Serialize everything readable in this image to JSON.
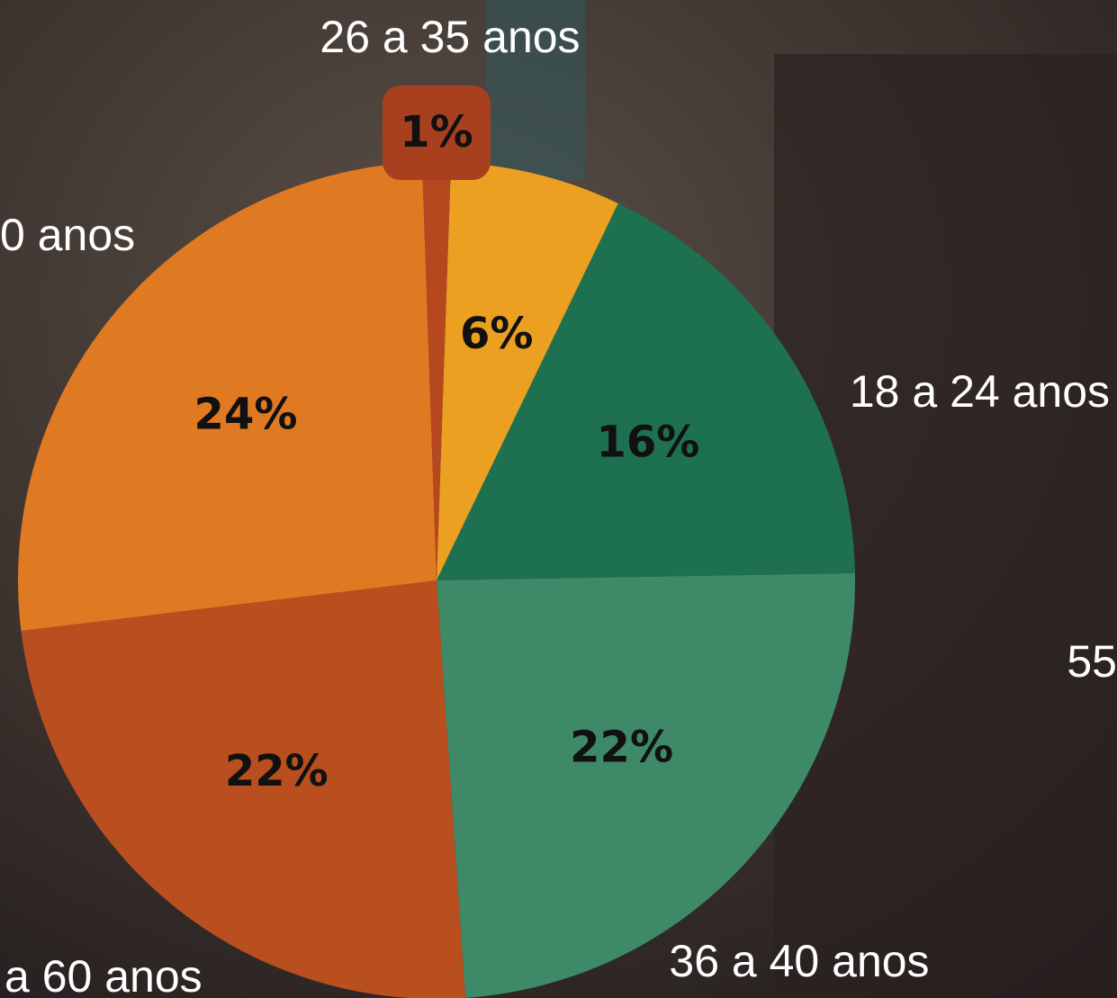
{
  "chart_data": {
    "type": "pie",
    "values": [
      6,
      16,
      22,
      22,
      24,
      1
    ],
    "value_labels": [
      "6%",
      "16%",
      "22%",
      "22%",
      "24%",
      "1%"
    ],
    "colors": [
      "#eba022",
      "#1e7150",
      "#3e8a68",
      "#b94e1e",
      "#e07a22",
      "#b5481f"
    ],
    "annotations": [
      "26 a 35 anos",
      "0 anos",
      "18 a 24 anos",
      "55",
      "36 a 40 anos",
      "a 60 anos"
    ]
  }
}
